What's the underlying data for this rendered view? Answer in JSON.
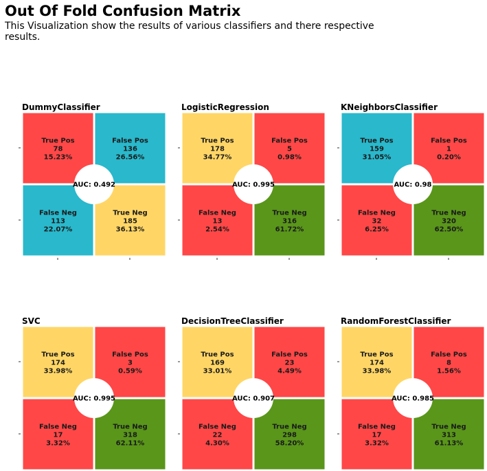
{
  "title": "Out Of Fold Confusion Matrix",
  "subtitle": "This Visualization show the results of various classifiers and there respective\n    results.",
  "colors": {
    "red": "#ff4747",
    "teal": "#29b8cc",
    "yellow": "#ffd666",
    "green": "#59961a"
  },
  "cell_labels": [
    "True Pos",
    "False Pos",
    "False Neg",
    "True Neg"
  ],
  "chart_data": [
    {
      "type": "heatmap",
      "title": "DummyClassifier",
      "auc_label": "AUC: 0.492",
      "cells": [
        {
          "label": "True Pos",
          "count": "78",
          "percent": "15.23%",
          "color": "red"
        },
        {
          "label": "False Pos",
          "count": "136",
          "percent": "26.56%",
          "color": "teal"
        },
        {
          "label": "False Neg",
          "count": "113",
          "percent": "22.07%",
          "color": "teal"
        },
        {
          "label": "True Neg",
          "count": "185",
          "percent": "36.13%",
          "color": "yellow"
        }
      ]
    },
    {
      "type": "heatmap",
      "title": "LogisticRegression",
      "auc_label": "AUC: 0.995",
      "cells": [
        {
          "label": "True Pos",
          "count": "178",
          "percent": "34.77%",
          "color": "yellow"
        },
        {
          "label": "False Pos",
          "count": "5",
          "percent": "0.98%",
          "color": "red"
        },
        {
          "label": "False Neg",
          "count": "13",
          "percent": "2.54%",
          "color": "red"
        },
        {
          "label": "True Neg",
          "count": "316",
          "percent": "61.72%",
          "color": "green"
        }
      ]
    },
    {
      "type": "heatmap",
      "title": "KNeighborsClassifier",
      "auc_label": "AUC: 0.98",
      "cells": [
        {
          "label": "True Pos",
          "count": "159",
          "percent": "31.05%",
          "color": "teal"
        },
        {
          "label": "False Pos",
          "count": "1",
          "percent": "0.20%",
          "color": "red"
        },
        {
          "label": "False Neg",
          "count": "32",
          "percent": "6.25%",
          "color": "red"
        },
        {
          "label": "True Neg",
          "count": "320",
          "percent": "62.50%",
          "color": "green"
        }
      ]
    },
    {
      "type": "heatmap",
      "title": "SVC",
      "auc_label": "AUC: 0.995",
      "cells": [
        {
          "label": "True Pos",
          "count": "174",
          "percent": "33.98%",
          "color": "yellow"
        },
        {
          "label": "False Pos",
          "count": "3",
          "percent": "0.59%",
          "color": "red"
        },
        {
          "label": "False Neg",
          "count": "17",
          "percent": "3.32%",
          "color": "red"
        },
        {
          "label": "True Neg",
          "count": "318",
          "percent": "62.11%",
          "color": "green"
        }
      ]
    },
    {
      "type": "heatmap",
      "title": "DecisionTreeClassifier",
      "auc_label": "AUC: 0.907",
      "cells": [
        {
          "label": "True Pos",
          "count": "169",
          "percent": "33.01%",
          "color": "yellow"
        },
        {
          "label": "False Pos",
          "count": "23",
          "percent": "4.49%",
          "color": "red"
        },
        {
          "label": "False Neg",
          "count": "22",
          "percent": "4.30%",
          "color": "red"
        },
        {
          "label": "True Neg",
          "count": "298",
          "percent": "58.20%",
          "color": "green"
        }
      ]
    },
    {
      "type": "heatmap",
      "title": "RandomForestClassifier",
      "auc_label": "AUC: 0.985",
      "cells": [
        {
          "label": "True Pos",
          "count": "174",
          "percent": "33.98%",
          "color": "yellow"
        },
        {
          "label": "False Pos",
          "count": "8",
          "percent": "1.56%",
          "color": "red"
        },
        {
          "label": "False Neg",
          "count": "17",
          "percent": "3.32%",
          "color": "red"
        },
        {
          "label": "True Neg",
          "count": "313",
          "percent": "61.13%",
          "color": "green"
        }
      ]
    }
  ]
}
